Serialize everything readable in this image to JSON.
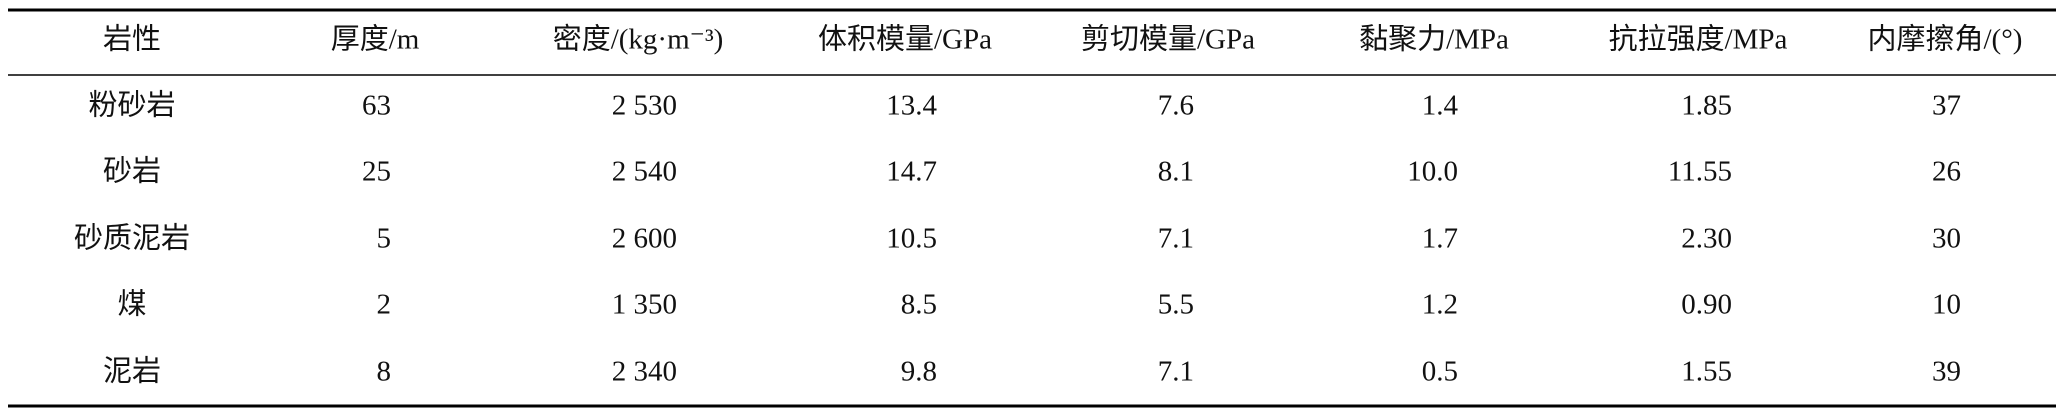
{
  "table": {
    "header": [
      "岩性",
      "厚度/m",
      "密度/(kg·m⁻³)",
      "体积模量/GPa",
      "剪切模量/GPa",
      "黏聚力/MPa",
      "抗拉强度/MPa",
      "内摩擦角/(°)"
    ],
    "rows": [
      [
        "粉砂岩",
        "63",
        "2 530",
        "13.4",
        "7.6",
        "1.4",
        "1.85",
        "37"
      ],
      [
        "砂岩",
        "25",
        "2 540",
        "14.7",
        "8.1",
        "10.0",
        "11.55",
        "26"
      ],
      [
        "砂质泥岩",
        "5",
        "2 600",
        "10.5",
        "7.1",
        "1.7",
        "2.30",
        "30"
      ],
      [
        "煤",
        "2",
        "1 350",
        "8.5",
        "5.5",
        "1.2",
        "0.90",
        "10"
      ],
      [
        "泥岩",
        "8",
        "2 340",
        "9.8",
        "7.1",
        "0.5",
        "1.55",
        "39"
      ]
    ]
  }
}
